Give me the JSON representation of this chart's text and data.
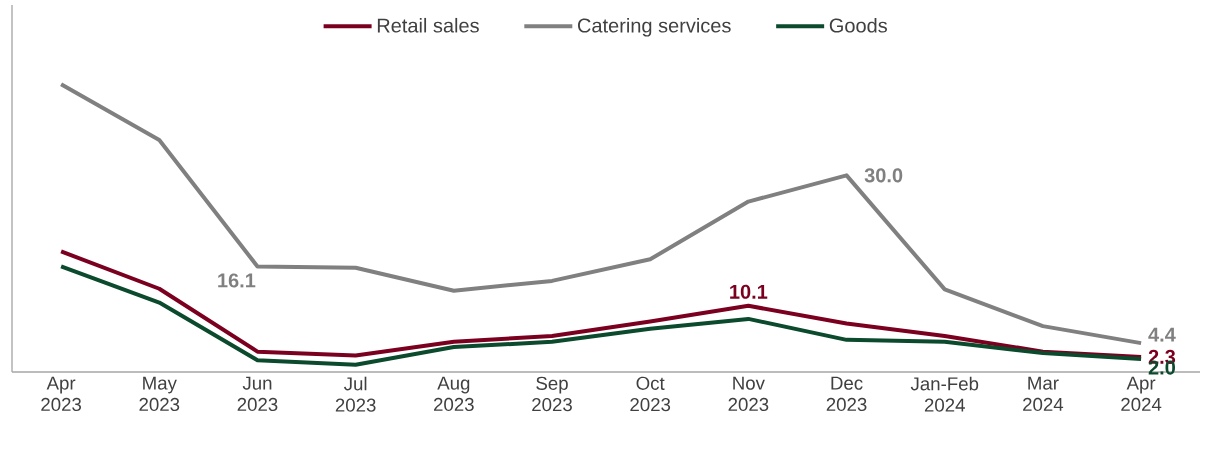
{
  "chart_data": {
    "type": "line",
    "categories": [
      "Apr 2023",
      "May 2023",
      "Jun 2023",
      "Jul 2023",
      "Aug 2023",
      "Sep 2023",
      "Oct 2023",
      "Nov 2023",
      "Dec 2023",
      "Jan-Feb 2024",
      "Mar 2024",
      "Apr 2024"
    ],
    "series": [
      {
        "name": "Retail sales",
        "color": "#7b0020",
        "values": [
          18.4,
          12.7,
          3.1,
          2.5,
          4.6,
          5.5,
          7.7,
          10.1,
          7.4,
          5.5,
          3.1,
          2.3
        ],
        "value_labels": [
          null,
          null,
          null,
          null,
          null,
          null,
          null,
          "10.1",
          null,
          null,
          null,
          "2.3"
        ]
      },
      {
        "name": "Catering services",
        "color": "#808080",
        "values": [
          43.9,
          35.4,
          16.1,
          15.9,
          12.4,
          13.9,
          17.2,
          26.0,
          30.0,
          12.6,
          7.0,
          4.4
        ],
        "value_labels": [
          null,
          null,
          "16.1",
          null,
          null,
          null,
          null,
          null,
          "30.0",
          null,
          null,
          "4.4"
        ]
      },
      {
        "name": "Goods",
        "color": "#0b4a2c",
        "values": [
          16.1,
          10.6,
          1.8,
          1.1,
          3.8,
          4.6,
          6.6,
          8.1,
          4.9,
          4.6,
          2.9,
          2.0
        ],
        "value_labels": [
          null,
          null,
          null,
          null,
          null,
          null,
          null,
          null,
          null,
          null,
          null,
          "2.0"
        ]
      }
    ],
    "ylim": [
      0,
      56
    ],
    "legend": "top",
    "tick_labels": "x"
  }
}
